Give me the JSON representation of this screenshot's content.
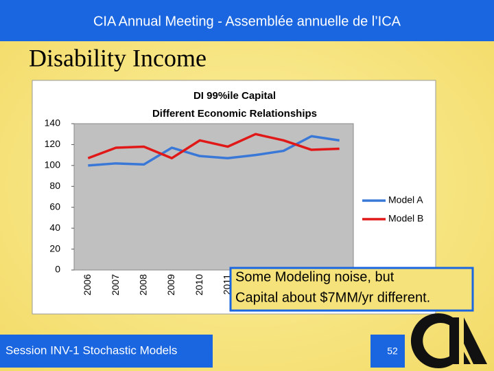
{
  "header": "CIA Annual Meeting - Assemblée annuelle de l’ICA",
  "slide_title": "Disability Income",
  "chart_data": {
    "type": "line",
    "title": [
      "DI 99%ile Capital",
      "Different Economic Relationships"
    ],
    "categories": [
      "2006",
      "2007",
      "2008",
      "2009",
      "2010",
      "2011",
      null,
      null,
      null,
      null
    ],
    "series": [
      {
        "name": "Model A",
        "color": "#3a78d8",
        "values": [
          100,
          102,
          101,
          117,
          109,
          107,
          110,
          114,
          128,
          124
        ]
      },
      {
        "name": "Model B",
        "color": "#e01818",
        "values": [
          107,
          117,
          118,
          107,
          124,
          118,
          130,
          124,
          115,
          116
        ]
      }
    ],
    "ylim": [
      0,
      140
    ],
    "yticks": [
      0,
      20,
      40,
      60,
      80,
      100,
      120,
      140
    ],
    "grid": false,
    "legend": "right"
  },
  "annotation": [
    "Some Modeling noise, but",
    "Capital about $7MM/yr different."
  ],
  "footer": "Session INV-1 Stochastic Models",
  "page_number": "52"
}
